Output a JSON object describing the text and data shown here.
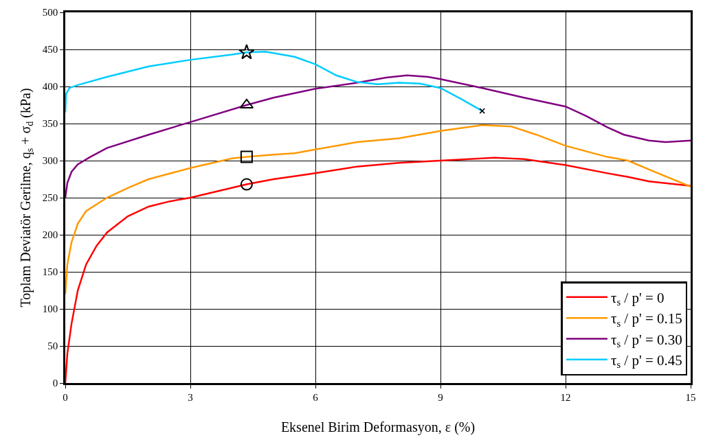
{
  "chart_data": {
    "type": "line",
    "xlabel": "Eksenel Birim Deformasyon, ε (%)",
    "ylabel": "Toplam Deviatör Gerilme, q$_{s}$ + σ$_{d}$ (kPa)",
    "xlim": [
      0,
      15
    ],
    "xticks": [
      0,
      3,
      6,
      9,
      12,
      15
    ],
    "ylim": [
      0,
      500
    ],
    "yticks": [
      0,
      50,
      100,
      150,
      200,
      250,
      300,
      350,
      400,
      450,
      500
    ],
    "grid": true,
    "legend": "bottom right",
    "line_style": "solid",
    "series": [
      {
        "name": "τ$_{s}$ / p' = 0",
        "color": "#ff0000",
        "x": [
          0,
          0.05,
          0.15,
          0.3,
          0.5,
          0.75,
          1,
          1.5,
          2,
          2.5,
          3,
          4.35,
          5,
          6,
          7,
          8,
          9,
          10.3,
          11,
          12,
          13,
          13.5,
          14,
          15
        ],
        "values": [
          0,
          40,
          80,
          125,
          160,
          185,
          203,
          225,
          238,
          245,
          250,
          268,
          275,
          283,
          292,
          297,
          300,
          304,
          302,
          294,
          283,
          278,
          272,
          266
        ]
      },
      {
        "name": "τ$_{s}$ / p' = 0.15",
        "color": "#ff9900",
        "x": [
          0,
          0.05,
          0.15,
          0.3,
          0.5,
          1,
          1.5,
          2,
          3,
          4,
          4.35,
          5,
          5.5,
          6,
          7,
          8,
          9,
          10,
          10.7,
          11.3,
          12,
          13,
          13.5,
          14,
          15
        ],
        "values": [
          120,
          160,
          190,
          215,
          232,
          250,
          263,
          275,
          290,
          303,
          305,
          308,
          310,
          315,
          325,
          330,
          340,
          348,
          346,
          335,
          320,
          305,
          300,
          288,
          265
        ]
      },
      {
        "name": "τ$_{s}$ / p' = 0.30",
        "color": "#800080",
        "x": [
          0,
          0.05,
          0.15,
          0.3,
          0.6,
          1,
          2,
          3,
          4.35,
          5,
          6,
          7,
          7.7,
          8.2,
          8.7,
          9,
          10,
          11,
          12,
          12.5,
          13,
          13.4,
          14,
          14.4,
          15
        ],
        "values": [
          250,
          270,
          285,
          295,
          305,
          317,
          335,
          352,
          375,
          385,
          397,
          405,
          412,
          415,
          413,
          410,
          398,
          385,
          373,
          360,
          345,
          335,
          327,
          325,
          327
        ]
      },
      {
        "name": "τ$_{s}$ / p' = 0.45",
        "color": "#00ccff",
        "x": [
          0,
          0.02,
          0.1,
          0.3,
          1,
          2,
          3,
          4,
          4.35,
          4.8,
          5.5,
          6,
          6.5,
          7,
          7.5,
          8,
          8.5,
          9,
          9.5,
          10
        ],
        "values": [
          365,
          390,
          398,
          402,
          413,
          427,
          436,
          443,
          446,
          447,
          440,
          430,
          415,
          406,
          403,
          405,
          404,
          398,
          383,
          367
        ]
      },
      {
        "type": "scatter",
        "color": "#000000",
        "marker": "circle",
        "x": [
          4.35
        ],
        "values": [
          268
        ]
      },
      {
        "type": "scatter",
        "color": "#000000",
        "marker": "square",
        "x": [
          4.35
        ],
        "values": [
          305
        ]
      },
      {
        "type": "scatter",
        "color": "#000000",
        "marker": "triangle",
        "x": [
          4.35
        ],
        "values": [
          375
        ]
      },
      {
        "type": "scatter",
        "color": "#000000",
        "marker": "star",
        "x": [
          4.35
        ],
        "values": [
          446
        ]
      },
      {
        "type": "scatter",
        "color": "#000000",
        "marker": "cross",
        "x": [
          10
        ],
        "values": [
          367
        ]
      }
    ]
  }
}
